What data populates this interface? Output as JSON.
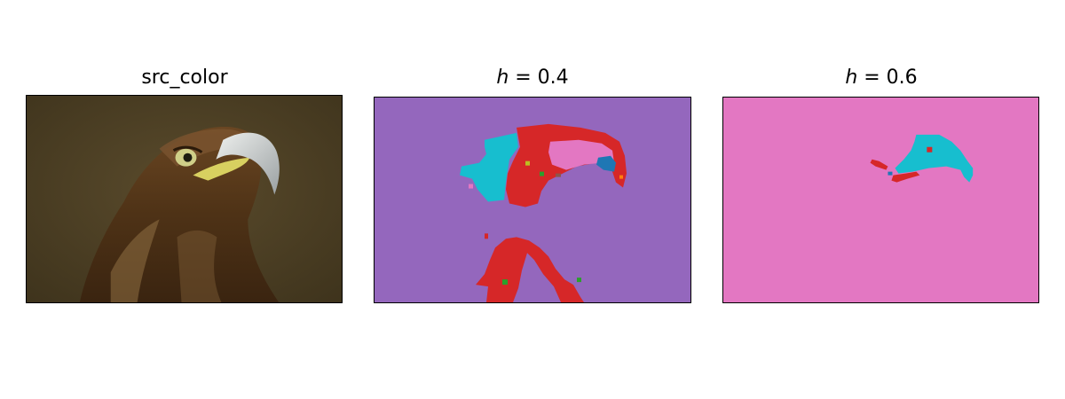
{
  "panels": [
    {
      "id": "src",
      "title": "src_color"
    },
    {
      "id": "h04",
      "title_var": "h",
      "title_rest": " = 0.4"
    },
    {
      "id": "h06",
      "title_var": "h",
      "title_rest": " = 0.6"
    }
  ],
  "colors": {
    "background_segment_04": "#9467bd",
    "background_segment_06": "#e377c2",
    "segment_red": "#d62728",
    "segment_cyan": "#17becf",
    "segment_pink": "#e377c2",
    "segment_blue": "#1f77b4",
    "segment_green": "#2ca02c",
    "segment_olive": "#bcbd22",
    "segment_orange": "#ff7f0e",
    "segment_brown": "#8c564b",
    "photo_background": "#4a3e24",
    "photo_feathers": "#5a3a1c",
    "photo_beak": "#c8ccc8",
    "photo_cere": "#d8d060"
  }
}
